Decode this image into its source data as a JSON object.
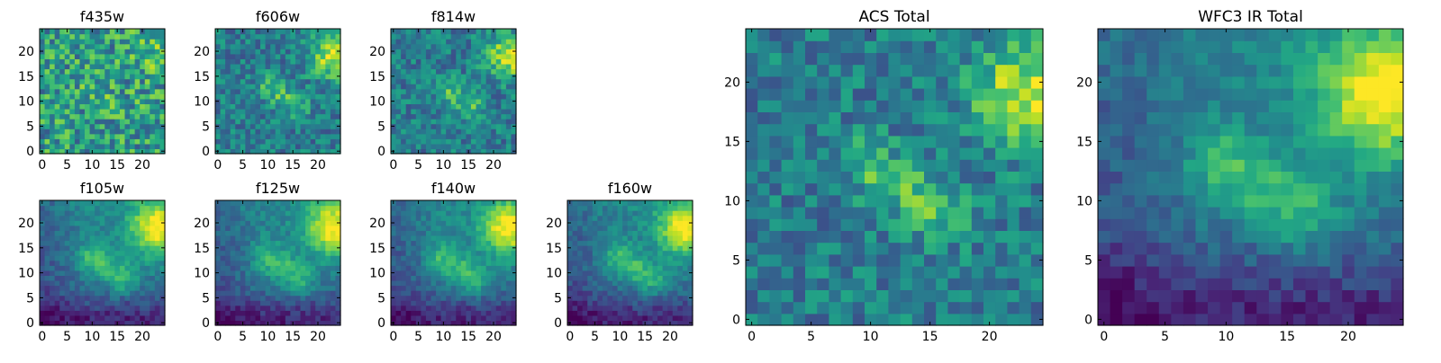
{
  "figure": {
    "panels": [
      {
        "id": "f435w",
        "title": "f435w",
        "kind": "noisy",
        "x_ticks": [
          "0",
          "5",
          "10",
          "15",
          "20"
        ],
        "y_ticks": [
          "0",
          "5",
          "10",
          "15",
          "20"
        ]
      },
      {
        "id": "f606w",
        "title": "f606w",
        "kind": "acs",
        "x_ticks": [
          "0",
          "5",
          "10",
          "15",
          "20"
        ],
        "y_ticks": [
          "0",
          "5",
          "10",
          "15",
          "20"
        ]
      },
      {
        "id": "f814w",
        "title": "f814w",
        "kind": "acs",
        "x_ticks": [
          "0",
          "5",
          "10",
          "15",
          "20"
        ],
        "y_ticks": [
          "0",
          "5",
          "10",
          "15",
          "20"
        ]
      },
      {
        "id": "f105w",
        "title": "f105w",
        "kind": "ir",
        "x_ticks": [
          "0",
          "5",
          "10",
          "15",
          "20"
        ],
        "y_ticks": [
          "0",
          "5",
          "10",
          "15",
          "20"
        ]
      },
      {
        "id": "f125w",
        "title": "f125w",
        "kind": "ir",
        "x_ticks": [
          "0",
          "5",
          "10",
          "15",
          "20"
        ],
        "y_ticks": [
          "0",
          "5",
          "10",
          "15",
          "20"
        ]
      },
      {
        "id": "f140w",
        "title": "f140w",
        "kind": "ir",
        "x_ticks": [
          "0",
          "5",
          "10",
          "15",
          "20"
        ],
        "y_ticks": [
          "0",
          "5",
          "10",
          "15",
          "20"
        ]
      },
      {
        "id": "f160w",
        "title": "f160w",
        "kind": "ir",
        "x_ticks": [
          "0",
          "5",
          "10",
          "15",
          "20"
        ],
        "y_ticks": [
          "0",
          "5",
          "10",
          "15",
          "20"
        ]
      },
      {
        "id": "acs_total",
        "title": "ACS Total",
        "kind": "acs",
        "x_ticks": [
          "0",
          "5",
          "10",
          "15",
          "20"
        ],
        "y_ticks": [
          "0",
          "5",
          "10",
          "15",
          "20"
        ]
      },
      {
        "id": "wfc3_total",
        "title": "WFC3 IR Total",
        "kind": "ir",
        "x_ticks": [
          "0",
          "5",
          "10",
          "15",
          "20"
        ],
        "y_ticks": [
          "0",
          "5",
          "10",
          "15",
          "20"
        ]
      }
    ]
  },
  "chart_data": {
    "type": "heatmap",
    "grid_size": 25,
    "colormap": "viridis",
    "axis_range": [
      -0.5,
      24.5
    ],
    "x_ticks": [
      0,
      5,
      10,
      15,
      20
    ],
    "y_ticks": [
      0,
      5,
      10,
      15,
      20
    ],
    "features": {
      "bright_source": {
        "x": 23,
        "y": 19
      },
      "diagonal_structure": {
        "from": [
          10,
          13
        ],
        "to": [
          16,
          9
        ]
      }
    },
    "panels": [
      "f435w",
      "f606w",
      "f814w",
      "f105w",
      "f125w",
      "f140w",
      "f160w",
      "ACS Total",
      "WFC3 IR Total"
    ]
  }
}
